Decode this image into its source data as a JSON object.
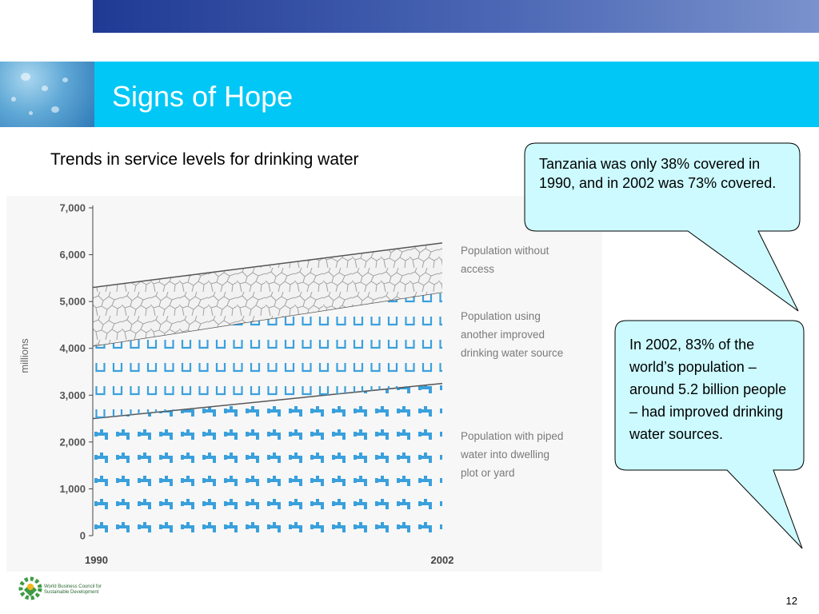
{
  "slide": {
    "title": "Signs of Hope",
    "subtitle": "Trends in service levels for drinking water",
    "page_number": "12",
    "logo_text": "World Business Council for Sustainable Development"
  },
  "callouts": [
    {
      "text": "Tanzania was only 38% covered in 1990, and in 2002 was 73% covered."
    },
    {
      "text": "In 2002, 83% of the world’s population – around 5.2 billion people – had improved drinking water sources."
    }
  ],
  "colors": {
    "top_bar": "#2a4aa5",
    "title_band": "#00c7f5",
    "callout_fill": "#ccfaff",
    "piped_blue": "#3aa0dc"
  },
  "chart_data": {
    "type": "area",
    "stacked": true,
    "x": [
      1990,
      2002
    ],
    "xticks": [
      "1990",
      "2002"
    ],
    "ylabel": "millions",
    "ylim": [
      0,
      7000
    ],
    "yticks": [
      "0",
      "1,000",
      "2,000",
      "3,000",
      "4,000",
      "5,000",
      "6,000",
      "7,000"
    ],
    "grid": false,
    "legend_position": "right",
    "series": [
      {
        "name": "Population with piped water into dwelling plot or yard",
        "values": [
          2500,
          3250
        ],
        "legend": [
          "Population with piped",
          "water into dwelling",
          "plot or yard"
        ]
      },
      {
        "name": "Population using another improved drinking water source",
        "values": [
          1550,
          1950
        ],
        "legend": [
          "Population using",
          "another improved",
          "drinking water source"
        ]
      },
      {
        "name": "Population without access",
        "values": [
          1250,
          1050
        ],
        "legend": [
          "Population without",
          "access"
        ]
      }
    ]
  }
}
